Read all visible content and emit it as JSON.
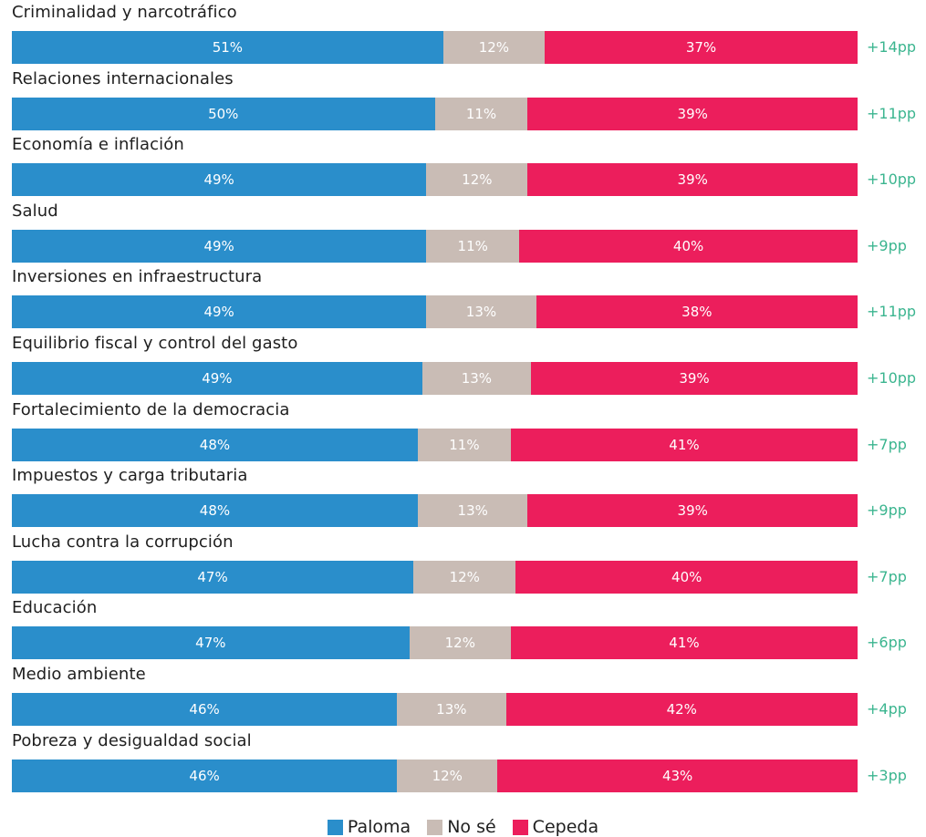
{
  "colors": {
    "paloma": "#2a8ecb",
    "nose": "#c9bcb5",
    "cepeda": "#ec1e5c",
    "diff_text": "#3bb58f"
  },
  "legend": {
    "paloma": "Paloma",
    "nose": "No sé",
    "cepeda": "Cepeda"
  },
  "chart_data": {
    "type": "bar",
    "orientation": "horizontal",
    "stacked": true,
    "categories": [
      "Criminalidad y narcotráfico",
      "Relaciones internacionales",
      "Economía e inflación",
      "Salud",
      "Inversiones en infraestructura",
      "Equilibrio fiscal y control del gasto",
      "Fortalecimiento de la democracia",
      "Impuestos y carga tributaria",
      "Lucha contra la corrupción",
      "Educación",
      "Medio ambiente",
      "Pobreza y desigualdad social"
    ],
    "series": [
      {
        "name": "Paloma",
        "values": [
          51,
          50,
          49,
          49,
          49,
          49,
          48,
          48,
          47,
          47,
          46,
          46
        ]
      },
      {
        "name": "No sé",
        "values": [
          12,
          11,
          12,
          11,
          13,
          13,
          11,
          13,
          12,
          12,
          13,
          12
        ]
      },
      {
        "name": "Cepeda",
        "values": [
          37,
          39,
          39,
          40,
          38,
          39,
          41,
          39,
          40,
          41,
          42,
          43
        ]
      }
    ],
    "differences": [
      "+14pp",
      "+11pp",
      "+10pp",
      "+9pp",
      "+11pp",
      "+10pp",
      "+7pp",
      "+9pp",
      "+7pp",
      "+6pp",
      "+4pp",
      "+3pp"
    ],
    "value_suffix": "%",
    "xlim": [
      0,
      100
    ],
    "legend_position": "bottom-center"
  }
}
